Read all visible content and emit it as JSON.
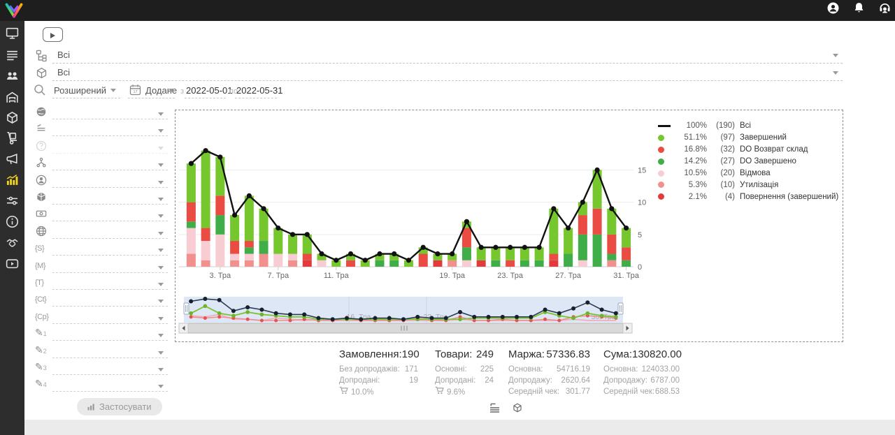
{
  "header": {
    "icons": [
      {
        "name": "user-account"
      },
      {
        "name": "notifications-bell"
      },
      {
        "name": "support-headset"
      }
    ]
  },
  "sidebar": {
    "items": [
      "monitor",
      "orders-list",
      "customers",
      "warehouse",
      "products",
      "delivery-trolley",
      "marketing-megaphone",
      "analytics-chart",
      "automation-sliders",
      "info",
      "partners-handshake",
      "video-tutorials"
    ],
    "active_item": "analytics-chart",
    "active_color": "#f5d31b"
  },
  "toolbar": {
    "video_button_icon": "play"
  },
  "filters": {
    "category": {
      "icon": "sitemap",
      "value": "Всі"
    },
    "product": {
      "icon": "package-box",
      "value": "Всі"
    },
    "search_mode": {
      "icon": "search",
      "value": "Розширений"
    },
    "date_field": {
      "icon": "calendar",
      "value": "Додане"
    },
    "date_from_label": "з",
    "date_from": "2022-05-01",
    "date_to_label": "по",
    "date_to": "2022-05-31",
    "selects": [
      {
        "icon": "globe-solid"
      },
      {
        "icon": "ranking-lines"
      },
      {
        "icon": "help-circle",
        "disabled": true
      },
      {
        "icon": "hierarchy"
      },
      {
        "icon": "person-circle"
      },
      {
        "icon": "cube-solid"
      },
      {
        "icon": "banknote"
      },
      {
        "icon": "globe-grid"
      },
      {
        "icon": "brace-s",
        "glyph": "{S}"
      },
      {
        "icon": "brace-m",
        "glyph": "{M}"
      },
      {
        "icon": "brace-t",
        "glyph": "{T}"
      },
      {
        "icon": "brace-ct",
        "glyph": "{Ct}"
      },
      {
        "icon": "brace-cp",
        "glyph": "{Cp}"
      },
      {
        "icon": "pencil-1",
        "glyph": "✎",
        "sub": "1"
      },
      {
        "icon": "pencil-2",
        "glyph": "✎",
        "sub": "2"
      },
      {
        "icon": "pencil-3",
        "glyph": "✎",
        "sub": "3"
      },
      {
        "icon": "pencil-4",
        "glyph": "✎",
        "sub": "4"
      }
    ],
    "apply_label": "Застосувати"
  },
  "chart_data": {
    "type": "stacked-bar+line",
    "days": 31,
    "yticks": [
      0,
      5,
      10,
      15
    ],
    "x_ticks": [
      {
        "day": 3,
        "label": "3. Тра"
      },
      {
        "day": 7,
        "label": "7. Тра"
      },
      {
        "day": 11,
        "label": "11. Тра"
      },
      {
        "day": 19,
        "label": "19. Тра"
      },
      {
        "day": 23,
        "label": "23. Тра"
      },
      {
        "day": 27,
        "label": "27. Тра"
      },
      {
        "day": 31,
        "label": "31. Тра"
      }
    ],
    "series": [
      {
        "key": "povernennia",
        "name": "Повернення (завершений)",
        "color": "#e23b3b",
        "values": [
          0,
          0,
          0,
          0,
          0,
          0,
          0,
          0,
          1,
          0,
          0,
          0,
          0,
          0,
          0,
          0,
          0,
          1,
          0,
          0,
          1,
          0,
          0,
          0,
          0,
          1,
          0,
          0,
          0,
          0,
          0
        ]
      },
      {
        "key": "utilizatsiia",
        "name": "Утилізація",
        "color": "#f2908d",
        "values": [
          2,
          1,
          0,
          1,
          1,
          2,
          0,
          1,
          0,
          0,
          0,
          0,
          0,
          0,
          0,
          0,
          0,
          0,
          1,
          0,
          0,
          0,
          0,
          0,
          0,
          0,
          0,
          0,
          0,
          1,
          0
        ]
      },
      {
        "key": "vidmova",
        "name": "Відмова",
        "color": "#f8ccd3",
        "values": [
          4,
          3,
          5,
          1,
          1,
          0,
          2,
          1,
          0,
          1,
          0,
          0,
          0,
          0,
          0,
          0,
          0,
          0,
          0,
          1,
          0,
          0,
          0,
          0,
          0,
          0,
          0,
          1,
          0,
          0,
          0
        ]
      },
      {
        "key": "do_zaversheno",
        "name": "DO Завершено",
        "color": "#3fae49",
        "values": [
          1,
          0,
          3,
          0,
          1,
          2,
          0,
          0,
          0,
          0,
          0,
          0,
          0,
          1,
          1,
          0,
          0,
          0,
          0,
          2,
          0,
          1,
          0,
          1,
          1,
          0,
          2,
          4,
          5,
          1,
          1
        ]
      },
      {
        "key": "do_vozvrat",
        "name": "DO Возврат склад",
        "color": "#ea4b42",
        "values": [
          3,
          2,
          3,
          2,
          1,
          0,
          0,
          0,
          1,
          0,
          0,
          1,
          0,
          0,
          0,
          0,
          2,
          0,
          0,
          3,
          0,
          0,
          1,
          0,
          0,
          1,
          0,
          3,
          4,
          3,
          2
        ]
      },
      {
        "key": "zavershenyi",
        "name": "Завершений",
        "color": "#76c62e",
        "values": [
          6,
          12,
          6,
          4,
          7,
          5,
          4,
          3,
          3,
          1,
          1,
          1,
          1,
          1,
          1,
          1,
          1,
          1,
          1,
          1,
          2,
          2,
          2,
          2,
          2,
          7,
          4,
          2,
          6,
          4,
          3
        ]
      }
    ],
    "total_line": {
      "name": "Всі",
      "color": "#111111",
      "total": 190
    },
    "navigator_labels": [
      {
        "x": 262,
        "label": "16. Тра"
      },
      {
        "x": 372,
        "label": "23. Тра"
      },
      {
        "x": 612,
        "label": "30. Тра"
      }
    ]
  },
  "legend": {
    "entries": [
      {
        "symbol": "line",
        "color": "#111111",
        "pct": "100%",
        "count": "(190)",
        "label": "Всі"
      },
      {
        "symbol": "circle",
        "color": "#76c62e",
        "pct": "51.1%",
        "count": "(97)",
        "label": "Завершений"
      },
      {
        "symbol": "circle",
        "color": "#ea4b42",
        "pct": "16.8%",
        "count": "(32)",
        "label": "DO Возврат склад"
      },
      {
        "symbol": "circle",
        "color": "#3fae49",
        "pct": "14.2%",
        "count": "(27)",
        "label": "DO Завершено"
      },
      {
        "symbol": "circle",
        "color": "#f8ccd3",
        "pct": "10.5%",
        "count": "(20)",
        "label": "Відмова"
      },
      {
        "symbol": "circle",
        "color": "#f2908d",
        "pct": "5.3%",
        "count": "(10)",
        "label": "Утилізація"
      },
      {
        "symbol": "circle",
        "color": "#e23b3b",
        "pct": "2.1%",
        "count": "(4)",
        "label": "Повернення (завершений)"
      }
    ]
  },
  "stats": {
    "columns": [
      {
        "name": "orders",
        "title": "Замовлення:",
        "value": "190",
        "rows": [
          {
            "label": "Без допродажів:",
            "value": "171"
          },
          {
            "label": "Допродані:",
            "value": "19"
          }
        ],
        "cart_pct": "10.0%"
      },
      {
        "name": "goods",
        "title": "Товари:",
        "value": "249",
        "rows": [
          {
            "label": "Основні:",
            "value": "225"
          },
          {
            "label": "Допродані:",
            "value": "24"
          }
        ],
        "cart_pct": "9.6%"
      },
      {
        "name": "margin",
        "title": "Маржа:",
        "value": "57336.83",
        "rows": [
          {
            "label": "Основна:",
            "value": "54716.19"
          },
          {
            "label": "Допродажу:",
            "value": "2620.64"
          },
          {
            "label": "Середній чек:",
            "value": "301.77"
          }
        ]
      },
      {
        "name": "sum",
        "title": "Сума:",
        "value": "130820.00",
        "rows": [
          {
            "label": "Основна:",
            "value": "124033.00"
          },
          {
            "label": "Допродажу:",
            "value": "6787.00"
          },
          {
            "label": "Середній чек:",
            "value": "688.53"
          }
        ]
      }
    ]
  },
  "footer": {
    "view_icons": [
      "list-view",
      "products-view"
    ]
  }
}
